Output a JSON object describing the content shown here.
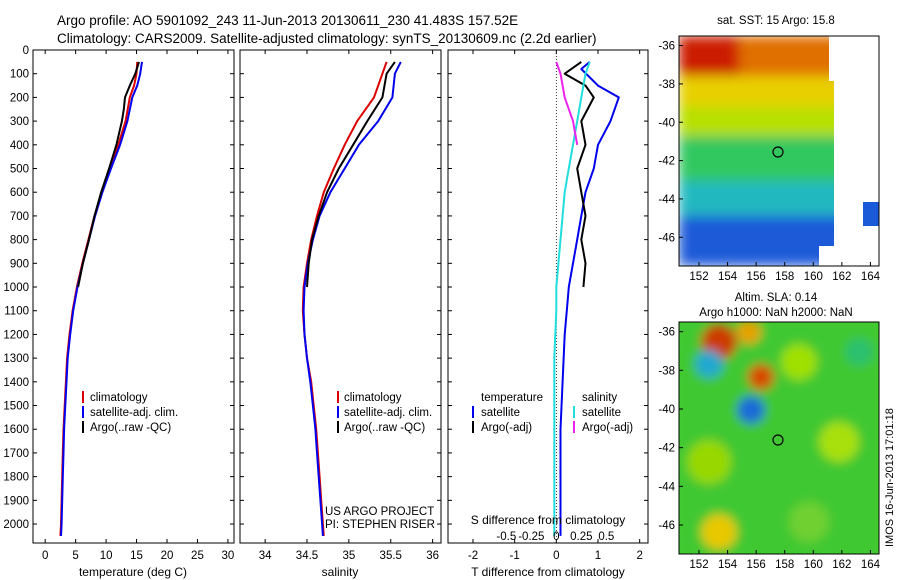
{
  "header": {
    "line1": "Argo profile: AO 5901092_243 11-Jun-2013 20130611_230 41.483S 157.52E",
    "line2": "Climatology: CARS2009. Satellite-adjusted climatology: synTS_20130609.nc (2.2d earlier)"
  },
  "side_stamp": "IMOS 16-Jun-2013 17:01:18",
  "colors": {
    "climatology": "#dd0000",
    "satellite": "#0000ee",
    "argo": "#000000",
    "t_satellite": "#0000ee",
    "s_satellite": "#22dddd",
    "s_argo": "#ee22ee"
  },
  "chart_data": [
    {
      "type": "line",
      "id": "temperature",
      "xlabel": "temperature (deg C)",
      "ylabel": "",
      "xlim": [
        -2,
        31
      ],
      "ylim": [
        2080,
        0
      ],
      "xticks": [
        0,
        5,
        10,
        15,
        20,
        25,
        30
      ],
      "yticks": [
        0,
        100,
        200,
        300,
        400,
        500,
        600,
        700,
        800,
        900,
        1000,
        1100,
        1200,
        1300,
        1400,
        1500,
        1600,
        1700,
        1800,
        1900,
        2000
      ],
      "legend": [
        "climatology",
        "satellite-adj. clim.",
        "Argo(..raw -QC)"
      ],
      "series": [
        {
          "name": "climatology",
          "color": "climatology",
          "points": [
            [
              15.1,
              50
            ],
            [
              15.0,
              100
            ],
            [
              14.6,
              150
            ],
            [
              13.9,
              200
            ],
            [
              13.2,
              300
            ],
            [
              12.0,
              400
            ],
            [
              10.6,
              500
            ],
            [
              9.3,
              600
            ],
            [
              8.1,
              700
            ],
            [
              7.1,
              800
            ],
            [
              6.1,
              900
            ],
            [
              5.2,
              1000
            ],
            [
              4.5,
              1100
            ],
            [
              4.0,
              1200
            ],
            [
              3.6,
              1300
            ],
            [
              3.4,
              1400
            ],
            [
              3.2,
              1500
            ],
            [
              3.0,
              1600
            ],
            [
              2.9,
              1700
            ],
            [
              2.8,
              1800
            ],
            [
              2.7,
              1900
            ],
            [
              2.6,
              2000
            ],
            [
              2.5,
              2050
            ]
          ]
        },
        {
          "name": "satellite-adj. clim.",
          "color": "satellite",
          "points": [
            [
              15.9,
              50
            ],
            [
              15.6,
              100
            ],
            [
              15.1,
              150
            ],
            [
              14.3,
              200
            ],
            [
              13.5,
              300
            ],
            [
              12.3,
              400
            ],
            [
              10.8,
              500
            ],
            [
              9.4,
              600
            ],
            [
              8.2,
              700
            ],
            [
              7.2,
              800
            ],
            [
              6.2,
              900
            ],
            [
              5.3,
              1000
            ],
            [
              4.6,
              1100
            ],
            [
              4.1,
              1200
            ],
            [
              3.7,
              1300
            ],
            [
              3.5,
              1400
            ],
            [
              3.3,
              1500
            ],
            [
              3.1,
              1600
            ],
            [
              3.0,
              1700
            ],
            [
              2.9,
              1800
            ],
            [
              2.8,
              1900
            ],
            [
              2.7,
              2000
            ],
            [
              2.6,
              2050
            ]
          ]
        },
        {
          "name": "Argo(..raw -QC)",
          "color": "argo",
          "points": [
            [
              15.4,
              50
            ],
            [
              14.8,
              100
            ],
            [
              13.9,
              150
            ],
            [
              13.1,
              200
            ],
            [
              12.9,
              250
            ],
            [
              12.6,
              300
            ],
            [
              11.7,
              400
            ],
            [
              10.5,
              500
            ],
            [
              9.2,
              600
            ],
            [
              8.1,
              700
            ],
            [
              7.2,
              800
            ],
            [
              6.2,
              900
            ],
            [
              5.4,
              1000
            ]
          ]
        }
      ]
    },
    {
      "type": "line",
      "id": "salinity",
      "xlabel": "salinity",
      "ylabel": "",
      "xlim": [
        33.7,
        36.1
      ],
      "ylim": [
        2080,
        0
      ],
      "xticks": [
        34,
        34.5,
        35,
        35.5,
        36
      ],
      "legend": [
        "climatology",
        "satellite-adj. clim.",
        "Argo(..raw -QC)"
      ],
      "annotation": [
        "US ARGO PROJECT",
        "PI: STEPHEN RISER"
      ],
      "series": [
        {
          "name": "climatology",
          "color": "climatology",
          "points": [
            [
              35.45,
              50
            ],
            [
              35.4,
              100
            ],
            [
              35.3,
              200
            ],
            [
              35.1,
              300
            ],
            [
              34.95,
              400
            ],
            [
              34.82,
              500
            ],
            [
              34.7,
              600
            ],
            [
              34.62,
              700
            ],
            [
              34.55,
              800
            ],
            [
              34.5,
              900
            ],
            [
              34.46,
              1000
            ],
            [
              34.45,
              1100
            ],
            [
              34.47,
              1200
            ],
            [
              34.5,
              1300
            ],
            [
              34.55,
              1400
            ],
            [
              34.58,
              1500
            ],
            [
              34.61,
              1600
            ],
            [
              34.63,
              1700
            ],
            [
              34.65,
              1800
            ],
            [
              34.67,
              1900
            ],
            [
              34.69,
              2000
            ],
            [
              34.7,
              2050
            ]
          ]
        },
        {
          "name": "satellite-adj. clim.",
          "color": "satellite",
          "points": [
            [
              35.62,
              50
            ],
            [
              35.55,
              100
            ],
            [
              35.52,
              200
            ],
            [
              35.35,
              300
            ],
            [
              35.12,
              400
            ],
            [
              34.95,
              500
            ],
            [
              34.78,
              600
            ],
            [
              34.65,
              700
            ],
            [
              34.57,
              800
            ],
            [
              34.51,
              900
            ],
            [
              34.47,
              1000
            ],
            [
              34.46,
              1100
            ],
            [
              34.47,
              1200
            ],
            [
              34.5,
              1300
            ],
            [
              34.54,
              1400
            ],
            [
              34.57,
              1500
            ],
            [
              34.6,
              1600
            ],
            [
              34.62,
              1700
            ],
            [
              34.64,
              1800
            ],
            [
              34.66,
              1900
            ],
            [
              34.68,
              2000
            ],
            [
              34.69,
              2050
            ]
          ]
        },
        {
          "name": "Argo(..raw -QC)",
          "color": "argo",
          "points": [
            [
              35.55,
              50
            ],
            [
              35.45,
              100
            ],
            [
              35.4,
              200
            ],
            [
              35.22,
              300
            ],
            [
              35.05,
              400
            ],
            [
              34.88,
              500
            ],
            [
              34.74,
              600
            ],
            [
              34.64,
              700
            ],
            [
              34.56,
              800
            ],
            [
              34.52,
              900
            ],
            [
              34.5,
              1000
            ]
          ]
        }
      ]
    },
    {
      "type": "line",
      "id": "differences",
      "xlabel": "T difference from climatology",
      "xlabel_top": "S difference from climatology",
      "xlim": [
        -2.6,
        2.2
      ],
      "ylim": [
        2080,
        0
      ],
      "xticks": [
        -2,
        -1,
        0,
        1,
        2
      ],
      "xticks_s": [
        "-0.5",
        "-0.25",
        "0",
        "0.25",
        "0.5"
      ],
      "legend_temperature": [
        "temperature",
        "satellite",
        "Argo(-adj)"
      ],
      "legend_salinity": [
        "salinity",
        "satellite",
        "Argo(-adj)"
      ],
      "series": [
        {
          "name": "satellite",
          "color": "t_satellite",
          "points": [
            [
              0.8,
              50
            ],
            [
              0.6,
              80
            ],
            [
              1.0,
              150
            ],
            [
              1.5,
              200
            ],
            [
              1.3,
              300
            ],
            [
              1.0,
              400
            ],
            [
              0.9,
              500
            ],
            [
              0.7,
              600
            ],
            [
              0.6,
              700
            ],
            [
              0.5,
              800
            ],
            [
              0.4,
              900
            ],
            [
              0.3,
              1000
            ],
            [
              0.25,
              1100
            ],
            [
              0.2,
              1200
            ],
            [
              0.15,
              1400
            ],
            [
              0.1,
              1600
            ],
            [
              0.1,
              1800
            ],
            [
              0.1,
              2000
            ],
            [
              0.1,
              2050
            ]
          ]
        },
        {
          "name": "Argo(-adj)",
          "color": "argo",
          "points": [
            [
              0.6,
              50
            ],
            [
              0.2,
              100
            ],
            [
              0.7,
              150
            ],
            [
              0.9,
              200
            ],
            [
              0.6,
              300
            ],
            [
              0.7,
              400
            ],
            [
              0.5,
              500
            ],
            [
              0.6,
              600
            ],
            [
              0.7,
              700
            ],
            [
              0.6,
              800
            ],
            [
              0.7,
              900
            ],
            [
              0.65,
              1000
            ]
          ]
        },
        {
          "name": "satellite",
          "color": "s_satellite",
          "points": [
            [
              0.8,
              50
            ],
            [
              0.7,
              100
            ],
            [
              0.6,
              200
            ],
            [
              0.5,
              300
            ],
            [
              0.4,
              400
            ],
            [
              0.3,
              500
            ],
            [
              0.2,
              600
            ],
            [
              0.15,
              700
            ],
            [
              0.1,
              800
            ],
            [
              0.05,
              900
            ],
            [
              0.0,
              1000
            ],
            [
              0.0,
              1100
            ],
            [
              -0.05,
              1300
            ],
            [
              -0.05,
              1500
            ],
            [
              -0.05,
              1800
            ],
            [
              -0.05,
              2050
            ]
          ]
        },
        {
          "name": "Argo(-adj)",
          "color": "s_argo",
          "points": [
            [
              0.0,
              50
            ],
            [
              0.1,
              100
            ],
            [
              0.2,
              200
            ],
            [
              0.4,
              300
            ],
            [
              0.5,
              400
            ]
          ]
        }
      ]
    },
    {
      "type": "heatmap",
      "id": "sst",
      "title": "sat. SST: 15 Argo: 15.8",
      "xlim": [
        150.6,
        164.6
      ],
      "ylim": [
        -47.5,
        -35.5
      ],
      "xticks": [
        152,
        154,
        156,
        158,
        160,
        162,
        164
      ],
      "yticks": [
        -36,
        -38,
        -40,
        -42,
        -44,
        -46
      ],
      "marker": [
        157.52,
        -41.483
      ]
    },
    {
      "type": "heatmap",
      "id": "sla",
      "title_line1": "Altim. SLA: 0.14",
      "title_line2": "Argo h1000: NaN h2000: NaN",
      "xlim": [
        150.6,
        164.6
      ],
      "ylim": [
        -47.5,
        -35.5
      ],
      "xticks": [
        152,
        154,
        156,
        158,
        160,
        162,
        164
      ],
      "yticks": [
        -36,
        -38,
        -40,
        -42,
        -44,
        -46
      ],
      "marker": [
        157.52,
        -41.483
      ]
    }
  ]
}
